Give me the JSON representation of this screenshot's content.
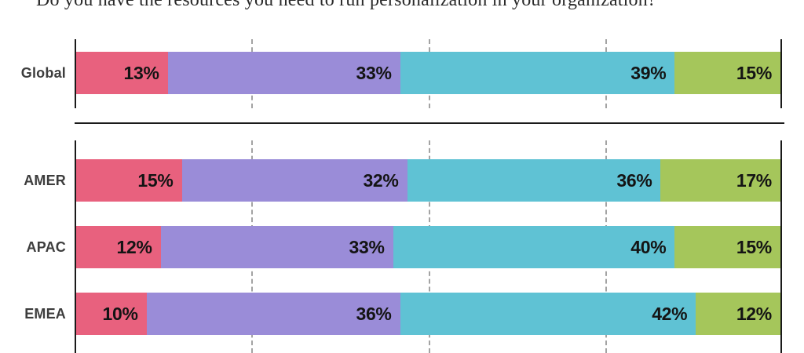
{
  "title": "Do you have the resources you need to run personalization in your organization?",
  "chart_data": {
    "type": "bar",
    "stacked": true,
    "orientation": "horizontal",
    "title": "Do you have the resources you need to run personalization in your organization?",
    "categories": [
      "Global",
      "AMER",
      "APAC",
      "EMEA"
    ],
    "series": [
      {
        "name": "segment-pink",
        "color": "#E8617E",
        "values": [
          13,
          15,
          12,
          10
        ],
        "labels": [
          "13%",
          "15%",
          "12%",
          "10%"
        ]
      },
      {
        "name": "segment-purple",
        "color": "#9A8CD8",
        "values": [
          33,
          32,
          33,
          36
        ],
        "labels": [
          "33%",
          "32%",
          "33%",
          "36%"
        ]
      },
      {
        "name": "segment-teal",
        "color": "#5FC2D4",
        "values": [
          39,
          36,
          40,
          42
        ],
        "labels": [
          "39%",
          "36%",
          "40%",
          "42%"
        ]
      },
      {
        "name": "segment-green",
        "color": "#A5C65B",
        "values": [
          15,
          17,
          15,
          12
        ],
        "labels": [
          "15%",
          "17%",
          "15%",
          "12%"
        ]
      }
    ],
    "xlim": [
      0,
      100
    ],
    "gridlines_percent": [
      25,
      50,
      75
    ],
    "legend": null,
    "axis_color": "#1a1a1a",
    "gridline_color": "#a3a3a3",
    "value_label_color": "#141414",
    "category_label_color": "#3d3d3d"
  }
}
